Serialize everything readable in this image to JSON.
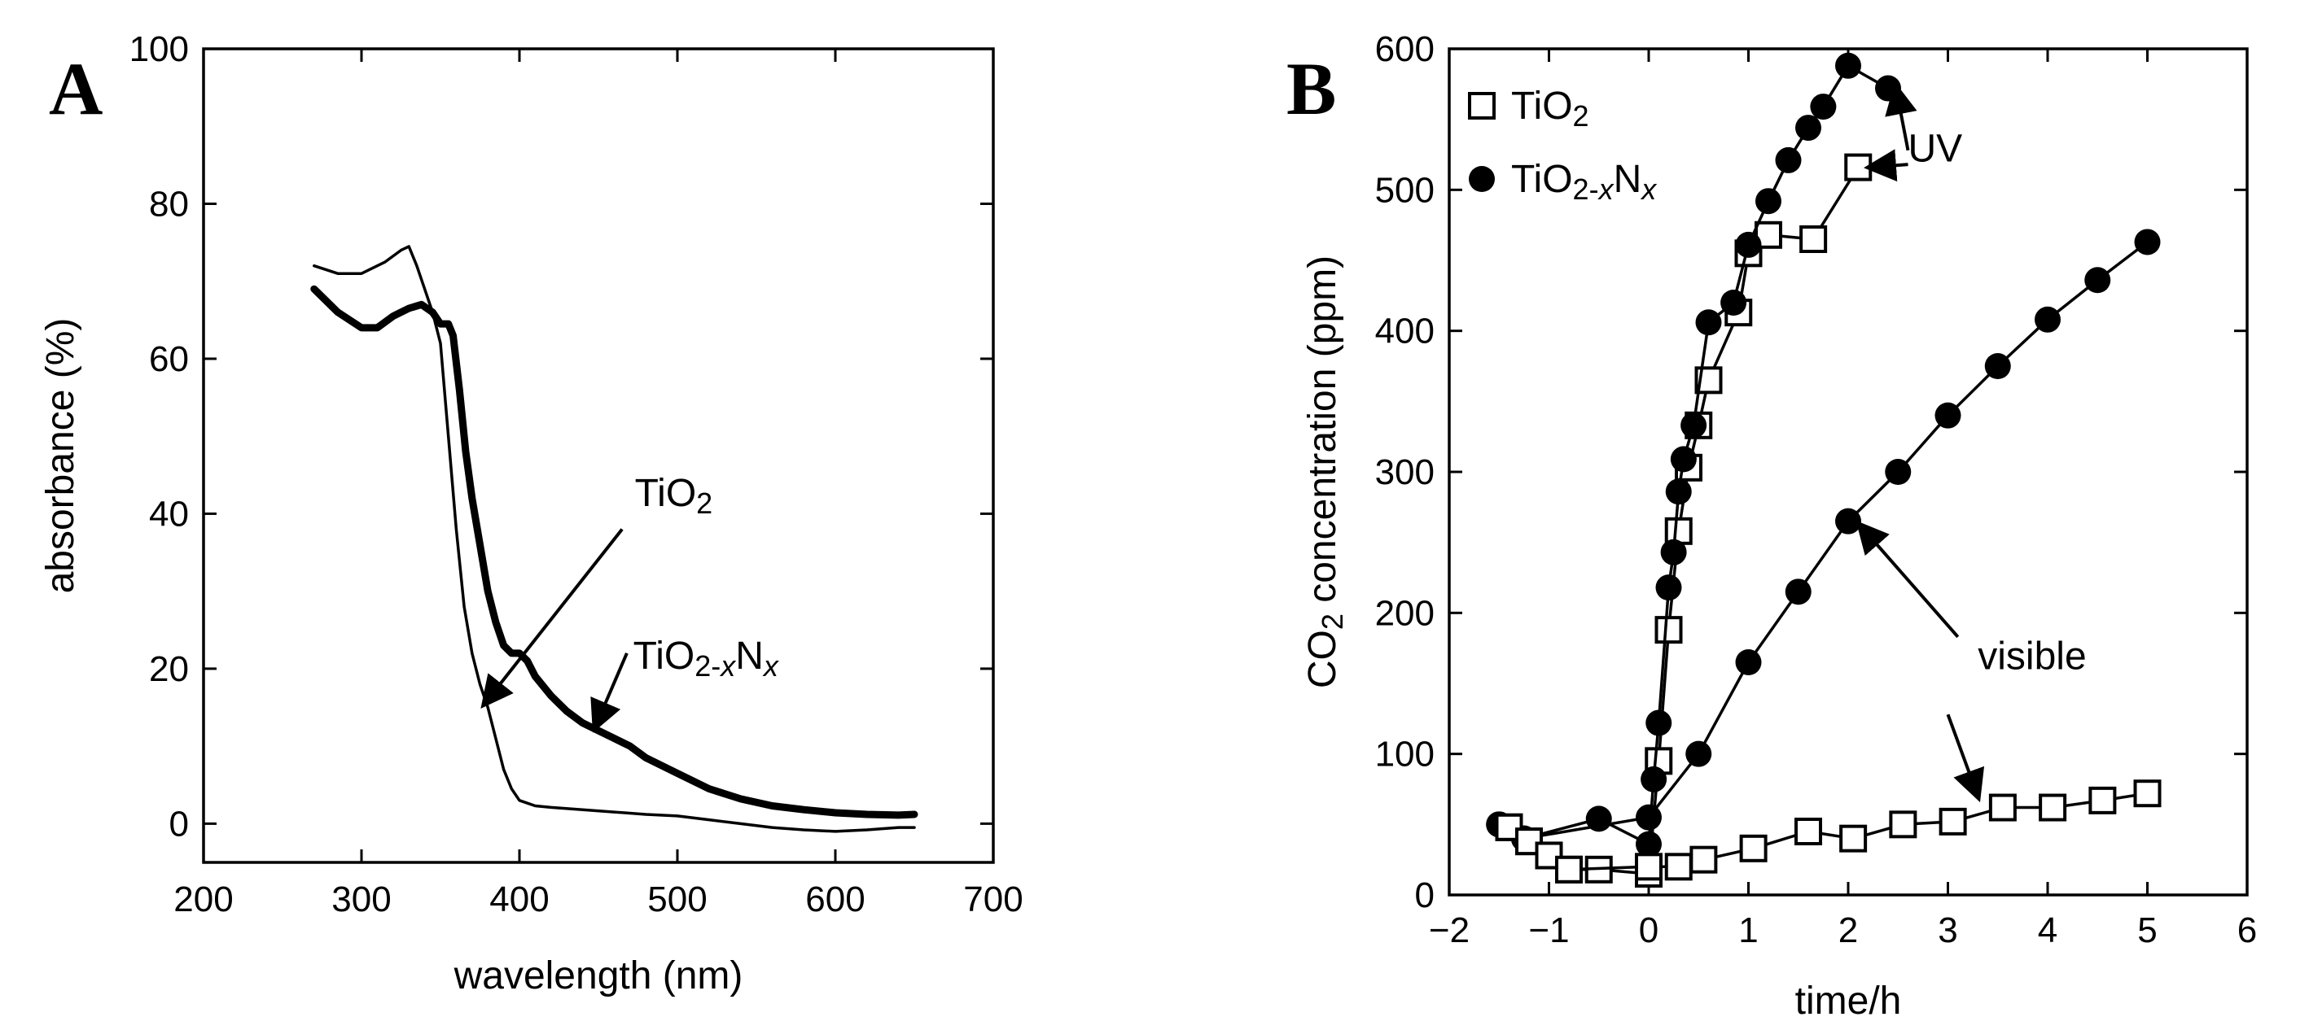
{
  "chart_data": [
    {
      "panel": "A",
      "type": "line",
      "title": "",
      "xlabel": "wavelength (nm)",
      "ylabel": "absorbance (%)",
      "xlim": [
        200,
        700
      ],
      "ylim": [
        -5,
        100
      ],
      "xticks": [
        200,
        300,
        400,
        500,
        600,
        700
      ],
      "yticks": [
        0,
        20,
        40,
        60,
        80,
        100
      ],
      "grid": false,
      "series": [
        {
          "name": "TiO2",
          "style": "thin",
          "x": [
            270,
            285,
            300,
            315,
            325,
            330,
            335,
            340,
            345,
            350,
            355,
            360,
            365,
            370,
            375,
            380,
            385,
            390,
            395,
            400,
            410,
            420,
            440,
            460,
            480,
            500,
            520,
            540,
            560,
            580,
            600,
            620,
            640,
            650
          ],
          "y": [
            72,
            71,
            71,
            72.5,
            74,
            74.5,
            72,
            69,
            66,
            62,
            50,
            38,
            28,
            22,
            18,
            15,
            11,
            7,
            4.5,
            3,
            2.3,
            2.1,
            1.8,
            1.5,
            1.2,
            1,
            0.5,
            0,
            -0.5,
            -0.8,
            -1,
            -0.8,
            -0.5,
            -0.5
          ]
        },
        {
          "name": "TiO2-xNx",
          "style": "thick",
          "x": [
            270,
            285,
            300,
            310,
            320,
            330,
            338,
            345,
            350,
            355,
            358,
            362,
            366,
            370,
            375,
            380,
            385,
            390,
            395,
            400,
            405,
            410,
            420,
            430,
            440,
            450,
            460,
            470,
            480,
            500,
            520,
            540,
            560,
            580,
            600,
            620,
            640,
            650
          ],
          "y": [
            69,
            66,
            64,
            64,
            65.5,
            66.5,
            67,
            66,
            64.5,
            64.5,
            63,
            56,
            48,
            42,
            36,
            30,
            26,
            23,
            22,
            22,
            21,
            19,
            16.5,
            14.5,
            13,
            12,
            11,
            10,
            8.5,
            6.5,
            4.5,
            3.2,
            2.3,
            1.8,
            1.4,
            1.2,
            1.1,
            1.2
          ]
        }
      ],
      "annotations": [
        {
          "text": "TiO2",
          "base": "TiO",
          "sub": "2",
          "sub_italic_x": false,
          "label_at": [
            473,
            41
          ],
          "arrow_from": [
            465,
            38
          ],
          "arrow_to": [
            378,
            15.5
          ]
        },
        {
          "text": "TiO2-xNx",
          "base": "TiO",
          "sub": "2-x",
          "mid": "N",
          "sub2": "x",
          "label_at": [
            472,
            20
          ],
          "arrow_from": [
            468,
            22
          ],
          "arrow_to": [
            448,
            12.5
          ]
        }
      ]
    },
    {
      "panel": "B",
      "type": "line",
      "title": "",
      "xlabel": "time/h",
      "ylabel": "CO2 concentration (ppm)",
      "xlim": [
        -2,
        6
      ],
      "ylim": [
        0,
        600
      ],
      "xticks": [
        -2,
        -1,
        0,
        1,
        2,
        3,
        4,
        5,
        6
      ],
      "xtick_labels": [
        "−2",
        "−1",
        "0",
        "1",
        "2",
        "3",
        "4",
        "5",
        "6"
      ],
      "yticks": [
        0,
        100,
        200,
        300,
        400,
        500,
        600
      ],
      "grid": false,
      "legend": {
        "placement": "top-left",
        "entries": [
          {
            "marker": "square-open",
            "base": "TiO",
            "sub": "2"
          },
          {
            "marker": "circle-filled",
            "base": "TiO",
            "sub": "2-x",
            "mid": "N",
            "sub2": "x"
          }
        ]
      },
      "series": [
        {
          "name": "TiO2 UV",
          "marker": "square-open",
          "x": [
            -1.4,
            -1.2,
            -1.0,
            -0.8,
            -0.5,
            0.0,
            0.1,
            0.2,
            0.3,
            0.4,
            0.5,
            0.6,
            0.9,
            1.0,
            1.2,
            1.65,
            2.1
          ],
          "y": [
            48,
            38,
            28,
            18,
            18,
            15,
            95,
            188,
            258,
            303,
            333,
            365,
            413,
            455,
            468,
            465,
            516
          ]
        },
        {
          "name": "TiO2-xNx UV",
          "marker": "circle-filled",
          "x": [
            -1.5,
            -1.25,
            -0.5,
            0.0,
            0.05,
            0.1,
            0.2,
            0.25,
            0.3,
            0.35,
            0.45,
            0.6,
            0.85,
            1.0,
            1.2,
            1.4,
            1.6,
            1.75,
            2.0,
            2.4
          ],
          "y": [
            50,
            40,
            54,
            36,
            82,
            122,
            218,
            243,
            286,
            309,
            333,
            406,
            420,
            461,
            492,
            521,
            544,
            559,
            588,
            572
          ]
        },
        {
          "name": "TiO2-xNx visible",
          "marker": "circle-filled",
          "x": [
            -1.5,
            -1.25,
            0.0,
            0.5,
            1.0,
            1.5,
            2.0,
            2.5,
            3.0,
            3.5,
            4.0,
            4.5,
            5.0
          ],
          "y": [
            50,
            40,
            55,
            100,
            165,
            215,
            265,
            300,
            340,
            375,
            408,
            436,
            463
          ]
        },
        {
          "name": "TiO2 visible",
          "marker": "square-open",
          "x": [
            -1.4,
            -1.2,
            -1.0,
            -0.8,
            0.0,
            0.3,
            0.55,
            1.05,
            1.6,
            2.05,
            2.55,
            3.05,
            3.55,
            4.05,
            4.55,
            5.0
          ],
          "y": [
            48,
            38,
            28,
            18,
            20,
            20,
            25,
            33,
            45,
            40,
            50,
            52,
            62,
            62,
            67,
            72
          ]
        }
      ],
      "annotations": [
        {
          "text": "UV",
          "label_at": [
            2.6,
            520
          ],
          "arrows": [
            [
              [
                2.6,
                528
              ],
              [
                2.48,
                572
              ]
            ],
            [
              [
                2.6,
                518
              ],
              [
                2.22,
                516
              ]
            ]
          ]
        },
        {
          "text": "visible",
          "label_at": [
            3.3,
            160
          ],
          "arrows": [
            [
              [
                3.1,
                183
              ],
              [
                2.12,
                262
              ]
            ],
            [
              [
                3.0,
                128
              ],
              [
                3.3,
                70
              ]
            ]
          ]
        }
      ]
    }
  ],
  "panel_labels": {
    "a": "A",
    "b": "B"
  }
}
